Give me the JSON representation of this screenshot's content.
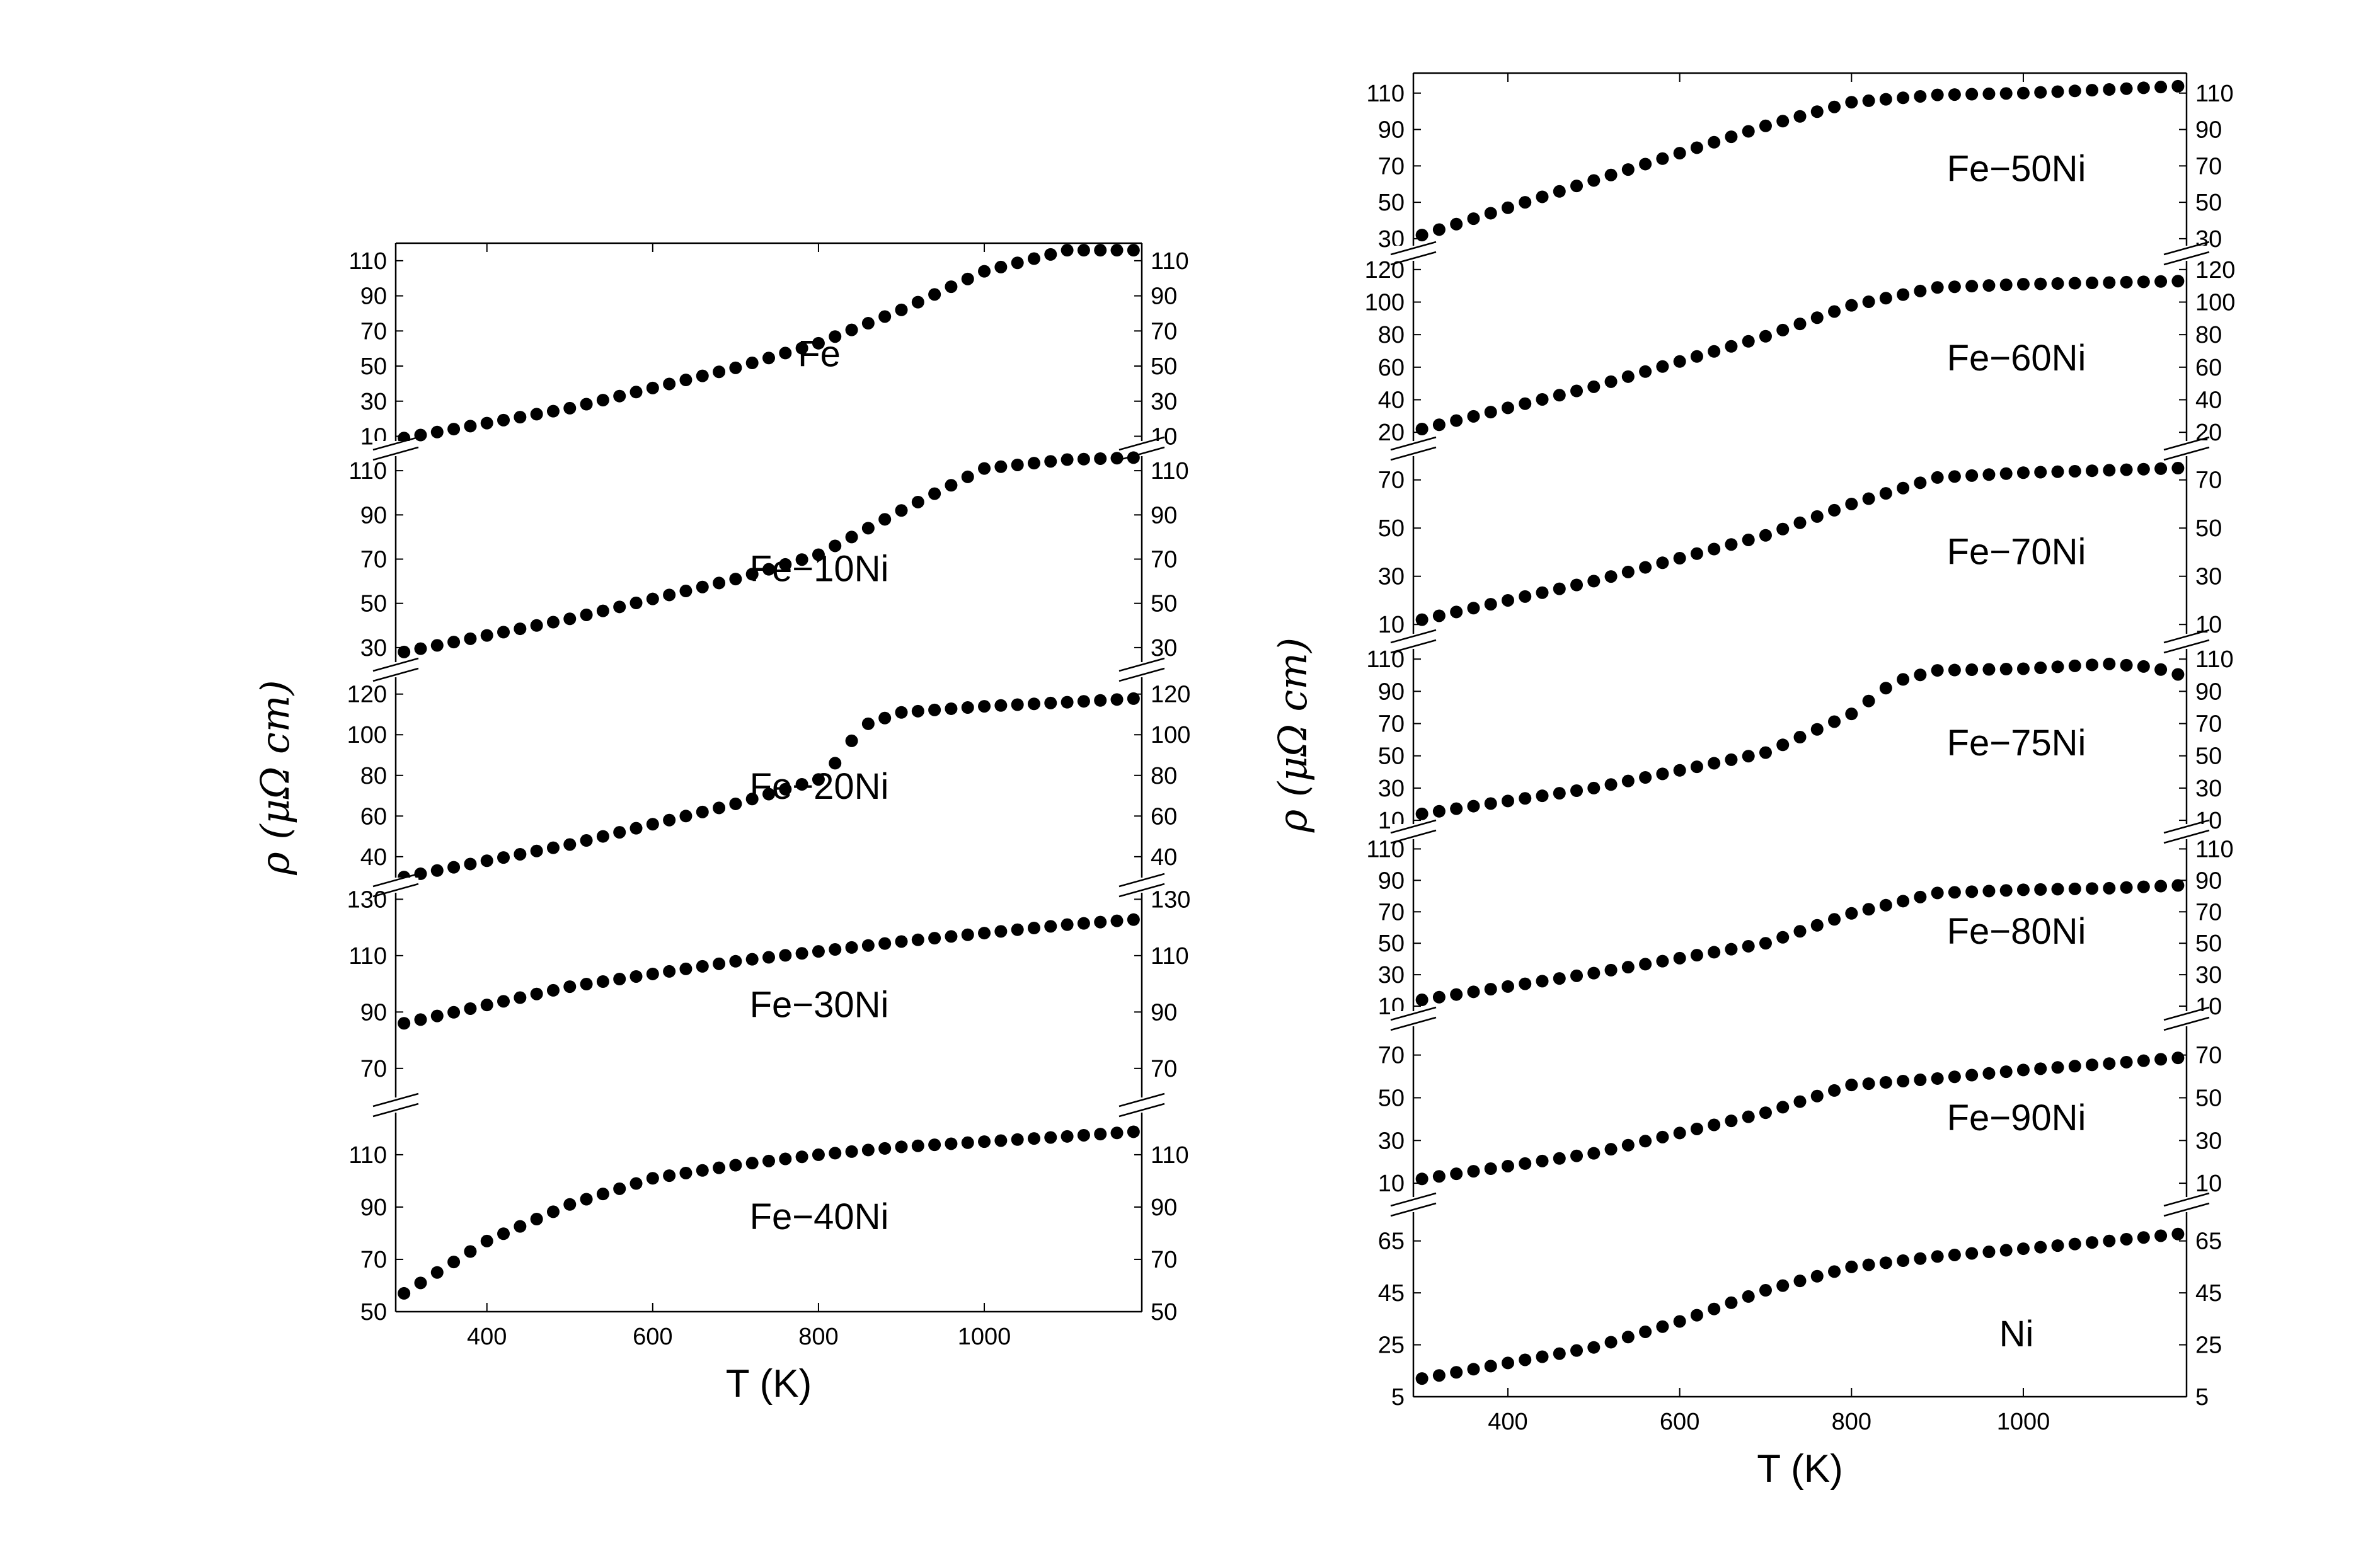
{
  "chart_data": [
    {
      "panel": "left",
      "type": "scatter",
      "x_axis": {
        "label": "T (K)",
        "range": [
          290,
          1190
        ],
        "ticks": [
          400,
          600,
          800,
          1000
        ]
      },
      "y_axis_label": "ρ (μΩ cm)",
      "subplots": [
        {
          "label": "Fe",
          "yrange": [
            3,
            120
          ],
          "yticks": [
            10,
            30,
            50,
            70,
            90,
            110
          ],
          "x": [
            300,
            500,
            700,
            800,
            900,
            1000,
            1100,
            1190
          ],
          "y": [
            9,
            26,
            49,
            63,
            82,
            104,
            116,
            116
          ]
        },
        {
          "label": "Fe−10Ni",
          "yrange": [
            20,
            120
          ],
          "yticks": [
            30,
            50,
            70,
            90,
            110
          ],
          "x": [
            300,
            500,
            700,
            800,
            900,
            1000,
            1100,
            1190
          ],
          "y": [
            28,
            43,
            61,
            72,
            92,
            111,
            115,
            116
          ]
        },
        {
          "label": "Fe−20Ni",
          "yrange": [
            26,
            132
          ],
          "yticks": [
            40,
            60,
            80,
            100,
            120
          ],
          "x": [
            300,
            500,
            700,
            800,
            830,
            850,
            900,
            1000,
            1100,
            1190
          ],
          "y": [
            30,
            46,
            66,
            78,
            90,
            104,
            111,
            114,
            116,
            118
          ]
        },
        {
          "label": "Fe−30Ni",
          "yrange": [
            57,
            135
          ],
          "yticks": [
            70,
            90,
            110,
            130
          ],
          "x": [
            300,
            500,
            700,
            900,
            1100,
            1190
          ],
          "y": [
            86,
            99,
            108,
            115,
            121,
            123
          ]
        },
        {
          "label": "Fe−40Ni",
          "yrange": [
            50,
            129
          ],
          "yticks": [
            50,
            70,
            90,
            110
          ],
          "x": [
            300,
            400,
            500,
            600,
            700,
            800,
            900,
            1000,
            1100,
            1190
          ],
          "y": [
            57,
            77,
            91,
            101,
            106,
            110,
            113,
            115,
            117,
            119
          ]
        }
      ]
    },
    {
      "panel": "right",
      "type": "scatter",
      "x_axis": {
        "label": "T (K)",
        "range": [
          290,
          1190
        ],
        "ticks": [
          400,
          600,
          800,
          1000
        ]
      },
      "y_axis_label": "ρ (μΩ cm)",
      "subplots": [
        {
          "label": "Fe−50Ni",
          "yrange": [
            22,
            121
          ],
          "yticks": [
            30,
            50,
            70,
            90,
            110
          ],
          "x": [
            300,
            500,
            700,
            800,
            900,
            1000,
            1100,
            1190
          ],
          "y": [
            32,
            62,
            92,
            105,
            109,
            110,
            112,
            114
          ]
        },
        {
          "label": "Fe−60Ni",
          "yrange": [
            10,
            130
          ],
          "yticks": [
            20,
            40,
            60,
            80,
            100,
            120
          ],
          "x": [
            300,
            500,
            700,
            800,
            900,
            1000,
            1100,
            1190
          ],
          "y": [
            22,
            48,
            79,
            98,
            109,
            111,
            112,
            113
          ]
        },
        {
          "label": "Fe−70Ni",
          "yrange": [
            3,
            83
          ],
          "yticks": [
            10,
            30,
            50,
            70
          ],
          "x": [
            300,
            500,
            700,
            800,
            900,
            1000,
            1100,
            1190
          ],
          "y": [
            12,
            28,
            47,
            60,
            71,
            73,
            74,
            75
          ]
        },
        {
          "label": "Fe−75Ni",
          "yrange": [
            3,
            121
          ],
          "yticks": [
            10,
            30,
            50,
            70,
            90,
            110
          ],
          "x": [
            300,
            500,
            700,
            800,
            850,
            900,
            1000,
            1100,
            1150,
            1190
          ],
          "y": [
            14,
            30,
            52,
            76,
            96,
            103,
            104,
            107,
            105,
            99
          ]
        },
        {
          "label": "Fe−80Ni",
          "yrange": [
            2,
            121
          ],
          "yticks": [
            10,
            30,
            50,
            70,
            90,
            110
          ],
          "x": [
            300,
            500,
            700,
            800,
            900,
            1000,
            1100,
            1190
          ],
          "y": [
            14,
            31,
            50,
            69,
            82,
            84,
            85,
            87
          ]
        },
        {
          "label": "Fe−90Ni",
          "yrange": [
            0,
            87
          ],
          "yticks": [
            10,
            30,
            50,
            70
          ],
          "x": [
            300,
            500,
            700,
            800,
            900,
            1000,
            1100,
            1190
          ],
          "y": [
            12,
            24,
            43,
            56,
            59,
            63,
            66,
            69
          ]
        },
        {
          "label": "Ni",
          "yrange": [
            5,
            79
          ],
          "yticks": [
            5,
            25,
            45,
            65
          ],
          "x": [
            300,
            500,
            600,
            700,
            800,
            900,
            1000,
            1100,
            1190
          ],
          "y": [
            12,
            24,
            34,
            46,
            55,
            59,
            62,
            65,
            68
          ]
        }
      ]
    }
  ]
}
